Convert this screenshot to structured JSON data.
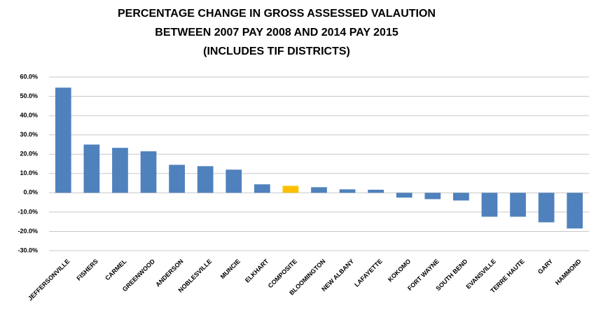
{
  "chart_data": {
    "type": "bar",
    "title": [
      "PERCENTAGE CHANGE IN GROSS ASSESSED VALAUTION",
      "BETWEEN 2007 PAY 2008 AND 2014 PAY 2015",
      "(INCLUDES TIF DISTRICTS)"
    ],
    "categories": [
      "JEFFERSONVILLE",
      "FISHERS",
      "CARMEL",
      "GREENWOOD",
      "ANDERSON",
      "NOBLESVILLE",
      "MUNCIE",
      "ELKHART",
      "COMPOSITE",
      "BLOOMINGTON",
      "NEW ALBANY",
      "LAFAYETTE",
      "KOKOMO",
      "FORT WAYNE",
      "SOUTH BEND",
      "EVANSVILLE",
      "TERRE HAUTE",
      "GARY",
      "HAMMOND"
    ],
    "values": [
      54.5,
      25,
      23.3,
      21.5,
      14.5,
      13.8,
      12,
      4.4,
      3.6,
      2.9,
      1.8,
      1.6,
      -2.5,
      -3.3,
      -4,
      -12.4,
      -12.4,
      -15.3,
      -18.5
    ],
    "colors": [
      "#4f81bd",
      "#4f81bd",
      "#4f81bd",
      "#4f81bd",
      "#4f81bd",
      "#4f81bd",
      "#4f81bd",
      "#4f81bd",
      "#ffc000",
      "#4f81bd",
      "#4f81bd",
      "#4f81bd",
      "#4f81bd",
      "#4f81bd",
      "#4f81bd",
      "#4f81bd",
      "#4f81bd",
      "#4f81bd",
      "#4f81bd"
    ],
    "ylim": [
      -30,
      60
    ],
    "yticks": [
      {
        "value": -30,
        "label": "-30.0%"
      },
      {
        "value": -20,
        "label": "-20.0%"
      },
      {
        "value": -10,
        "label": "-10.0%"
      },
      {
        "value": 0,
        "label": "0.0%"
      },
      {
        "value": 10,
        "label": "10.0%"
      },
      {
        "value": 20,
        "label": "20.0%"
      },
      {
        "value": 30,
        "label": "30.0%"
      },
      {
        "value": 40,
        "label": "40.0%"
      },
      {
        "value": 50,
        "label": "50.0%"
      },
      {
        "value": 60,
        "label": "60.0%"
      }
    ],
    "grid": true
  }
}
